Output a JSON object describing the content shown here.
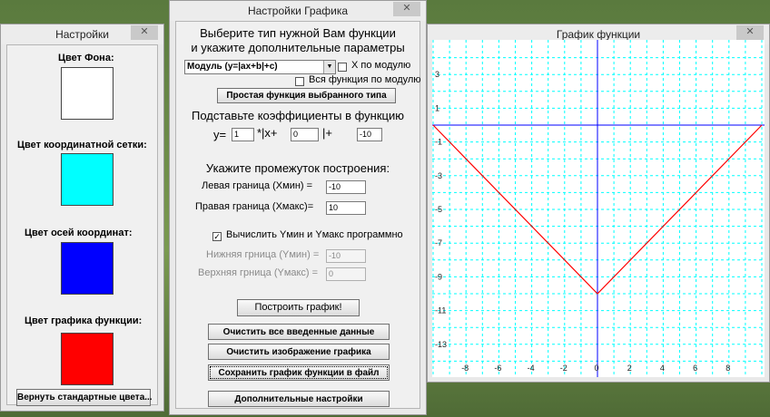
{
  "settings_window": {
    "title": "Настройки",
    "close": "✕",
    "bg_color_label": "Цвет Фона:",
    "grid_color_label": "Цвет координатной сетки:",
    "axes_color_label": "Цвет осей координат:",
    "func_color_label": "Цвет графика функции:",
    "colors": {
      "bg": "#ffffff",
      "grid": "#00ffff",
      "axes": "#0000ff",
      "func": "#ff0000"
    },
    "reset_button": "Вернуть стандартные цвета..."
  },
  "graph_settings": {
    "title": "Настройки Графика",
    "close": "✕",
    "heading_line1": "Выберите тип нужной Вам функции",
    "heading_line2": "и укажите дополнительные параметры",
    "function_type_selected": "Модуль (y=|ax+b|+c)",
    "x_modulus_label": "Х по модулю",
    "all_modulus_label": "Вся функция по модулю",
    "simple_function_button": "Простая функция выбранного типа",
    "coef_heading": "Подставьте коэффициенты в функцию",
    "y_eq": "y=",
    "coef_a": "1",
    "x_part": "*|x+",
    "coef_b": "0",
    "plus_part": "|+",
    "coef_c": "-10",
    "range_heading": "Укажите промежуток построения:",
    "left_bound_label": "Левая граница (Хмин) =",
    "left_bound_value": "-10",
    "right_bound_label": "Правая граница (Хмакс)=",
    "right_bound_value": "10",
    "auto_y_label": "Вычислить Yмин и Yмакс программно",
    "auto_y_checked": "✓",
    "lower_y_label": "Нижняя грница (Yмин) =",
    "lower_y_value": "-10",
    "upper_y_label": "Верхняя грница (Yмакс) =",
    "upper_y_value": "0",
    "build_button": "Построить график!",
    "clear_data_button": "Очистить все введенные данные",
    "clear_image_button": "Очистить изображение графика",
    "save_button": "Сохранить график функции в файл",
    "extra_settings_button": "Дополнительные настройки"
  },
  "graph_window": {
    "title": "График функции",
    "close": "✕",
    "x_ticks": [
      "-8",
      "-6",
      "-4",
      "-2",
      "0",
      "2",
      "4",
      "6",
      "8"
    ],
    "y_ticks": [
      "-1",
      "-3",
      "-5",
      "-7",
      "-9",
      "-11",
      "-13"
    ],
    "y_ticks_partial": [
      "3",
      "1"
    ]
  },
  "chart_data": {
    "type": "line",
    "xlim": [
      -10,
      10
    ],
    "ylim": [
      -14,
      4
    ],
    "grid": true,
    "series": [
      {
        "x": [
          -10,
          0,
          10
        ],
        "y": [
          0,
          -10,
          0
        ],
        "color": "#ff0000"
      }
    ]
  }
}
